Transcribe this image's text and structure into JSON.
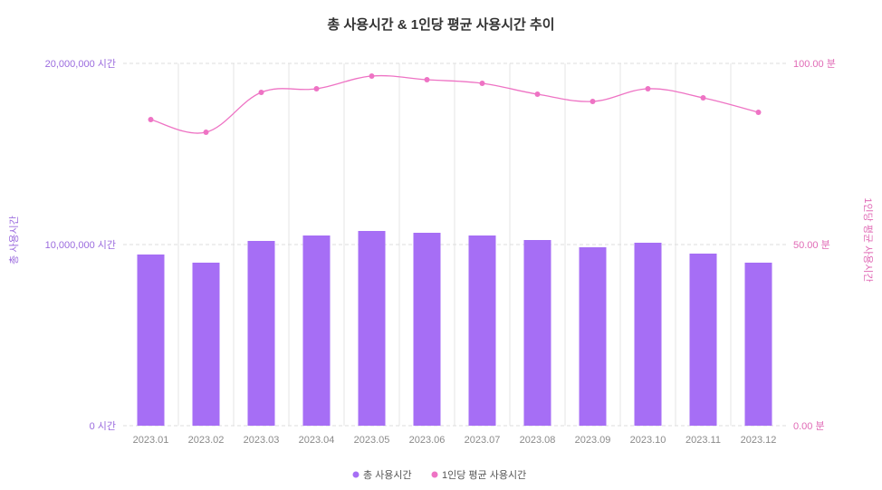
{
  "chart_data": {
    "type": "bar+line",
    "title": "총 사용시간 & 1인당 평균 사용시간 추이",
    "categories": [
      "2023.01",
      "2023.02",
      "2023.03",
      "2023.04",
      "2023.05",
      "2023.06",
      "2023.07",
      "2023.08",
      "2023.09",
      "2023.10",
      "2023.11",
      "2023.12"
    ],
    "series": [
      {
        "name": "총 사용시간",
        "kind": "bar",
        "axis": "left",
        "color": "#a66ef5",
        "values": [
          9450000,
          9000000,
          10200000,
          10500000,
          10750000,
          10650000,
          10500000,
          10250000,
          9850000,
          10100000,
          9500000,
          9000000
        ]
      },
      {
        "name": "1인당 평균 사용시간",
        "kind": "line",
        "axis": "right",
        "color": "#ee73c4",
        "values": [
          84.5,
          81.0,
          92.0,
          93.0,
          96.5,
          95.5,
          94.5,
          91.5,
          89.5,
          93.0,
          90.5,
          86.5
        ]
      }
    ],
    "y_left": {
      "label": "총 사용시간",
      "ylim": [
        0,
        20000000
      ],
      "ticks": [
        0,
        10000000,
        20000000
      ],
      "tick_labels": [
        "0 시간",
        "10,000,000 시간",
        "20,000,000 시간"
      ]
    },
    "y_right": {
      "label": "1인당 평균 사용시간",
      "ylim": [
        0,
        100
      ],
      "ticks": [
        0,
        50,
        100
      ],
      "tick_labels": [
        "0.00 분",
        "50.00 분",
        "100.00 분"
      ]
    },
    "grid": true,
    "legend": "bottom-center"
  }
}
